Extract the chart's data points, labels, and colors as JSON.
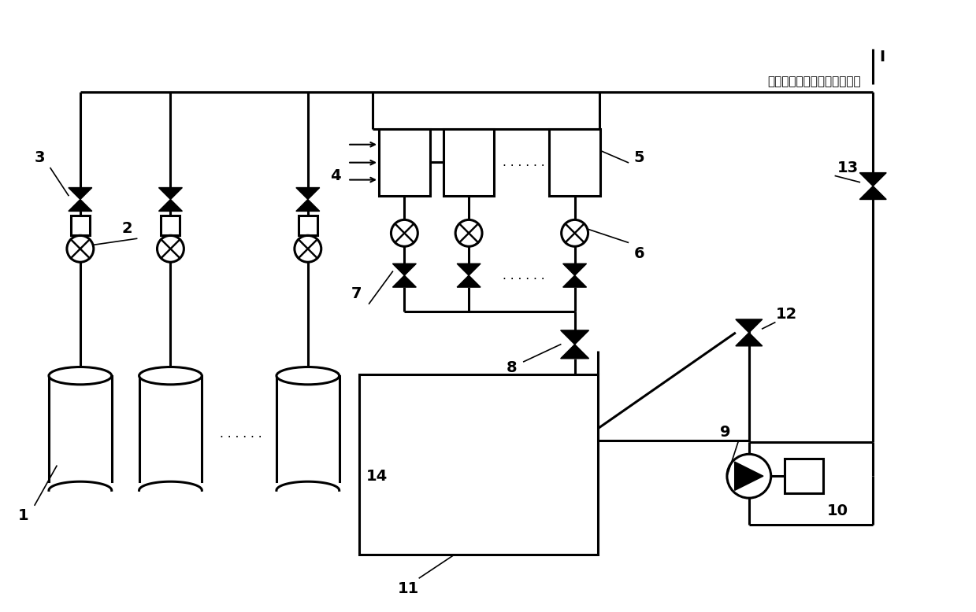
{
  "bg_color": "#ffffff",
  "line_color": "#000000",
  "lw": 2.2,
  "label_fontsize": 14,
  "annotation_fontsize": 11,
  "chinese_text": "互联机、零部件缓冲抄光设备",
  "fig_width": 12.39,
  "fig_height": 7.78
}
